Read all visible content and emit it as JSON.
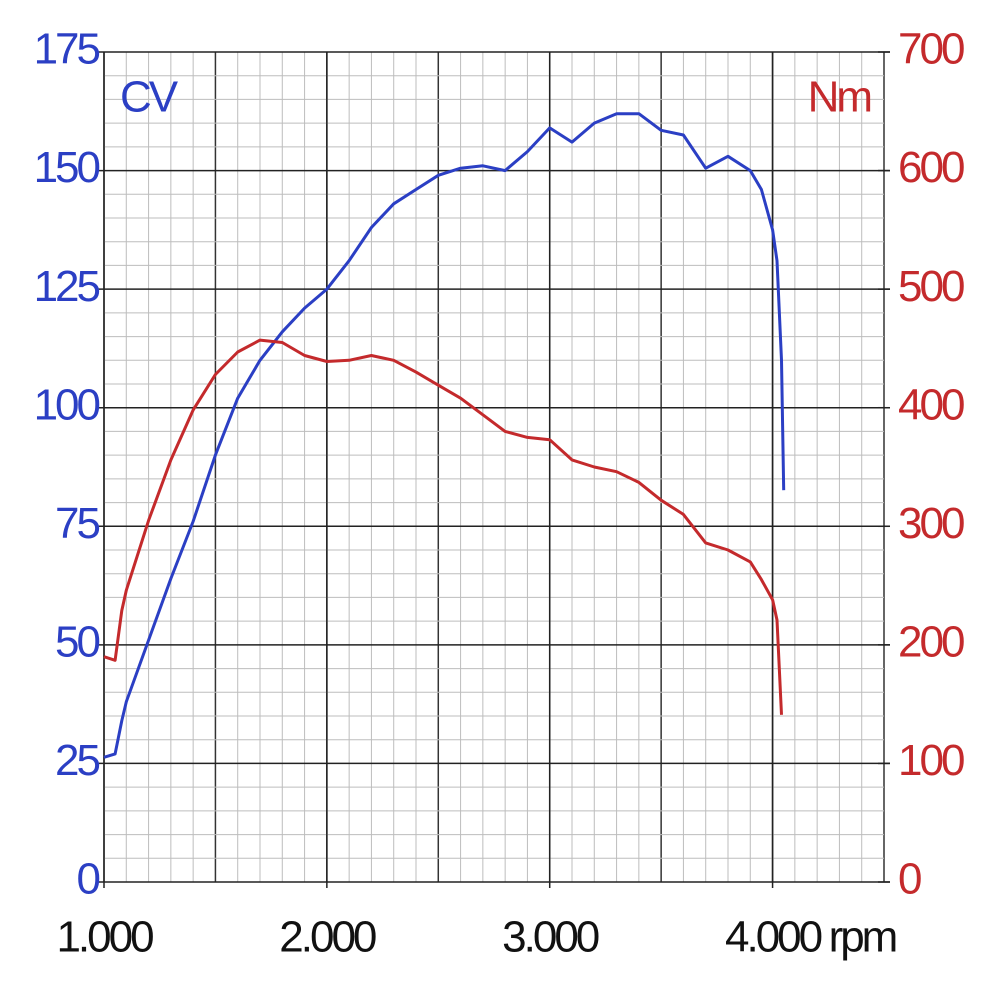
{
  "chart_data": {
    "type": "line",
    "x_label": "rpm",
    "x": [
      1000,
      1050,
      1080,
      1100,
      1200,
      1300,
      1400,
      1500,
      1600,
      1700,
      1800,
      1900,
      2000,
      2100,
      2200,
      2300,
      2400,
      2500,
      2600,
      2700,
      2800,
      2900,
      3000,
      3100,
      3200,
      3300,
      3400,
      3500,
      3600,
      3700,
      3800,
      3900,
      3950,
      4000,
      4020,
      4040,
      4050
    ],
    "series": [
      {
        "name": "CV",
        "color": "#2b3fc4",
        "values": [
          26.3,
          27,
          34,
          38,
          51,
          64,
          76,
          90,
          102,
          110,
          116,
          121,
          125,
          131,
          138,
          143,
          146,
          149,
          150.5,
          151,
          150,
          154,
          159,
          156,
          160,
          162,
          162,
          158.5,
          157.5,
          150.5,
          153,
          150,
          146,
          137.5,
          131,
          110,
          82.6
        ]
      },
      {
        "name": "Nm",
        "color": "#c42a2c",
        "axis": "y2",
        "values": [
          190,
          187,
          229,
          246,
          305,
          356,
          398,
          428,
          447,
          457,
          455,
          444,
          439,
          440,
          444,
          440,
          430,
          419,
          408,
          394,
          380,
          375,
          373,
          356,
          350,
          346,
          337,
          322,
          310,
          286,
          280,
          270,
          255,
          238,
          221,
          141,
          null
        ]
      }
    ],
    "xlim": [
      1000,
      4500
    ],
    "xticks": [
      {
        "value": 1000,
        "label": "1.000"
      },
      {
        "value": 2000,
        "label": "2.000"
      },
      {
        "value": 3000,
        "label": "3.000"
      },
      {
        "value": 4000,
        "label": "4.000"
      }
    ],
    "ylim": [
      0,
      175
    ],
    "yticks": [
      0,
      25,
      50,
      75,
      100,
      125,
      150,
      175
    ],
    "y2lim": [
      0,
      700
    ],
    "y2ticks": [
      0,
      100,
      200,
      300,
      400,
      500,
      600,
      700
    ],
    "grid": true
  }
}
